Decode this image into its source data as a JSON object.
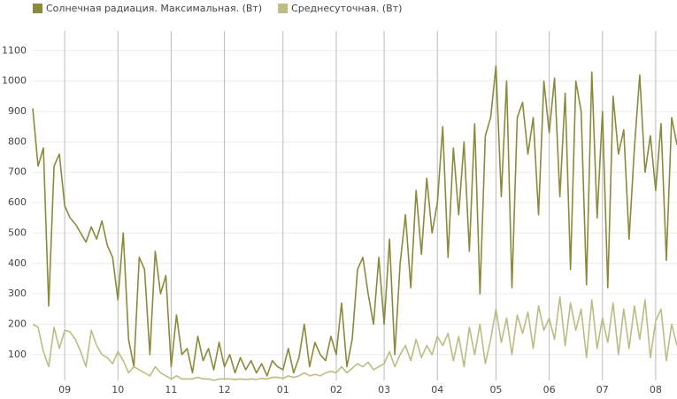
{
  "chart_data": {
    "type": "line",
    "categories": [
      null,
      null,
      null,
      null,
      null,
      null,
      "09",
      null,
      null,
      null,
      null,
      null,
      null,
      null,
      null,
      null,
      "10",
      null,
      null,
      null,
      null,
      null,
      null,
      null,
      null,
      null,
      "11",
      null,
      null,
      null,
      null,
      null,
      null,
      null,
      null,
      null,
      "12",
      null,
      null,
      null,
      null,
      null,
      null,
      null,
      null,
      null,
      null,
      "01",
      null,
      null,
      null,
      null,
      null,
      null,
      null,
      null,
      null,
      "02",
      null,
      null,
      null,
      null,
      null,
      null,
      null,
      null,
      "03",
      null,
      null,
      null,
      null,
      null,
      null,
      null,
      null,
      null,
      "04",
      null,
      null,
      null,
      null,
      null,
      null,
      null,
      null,
      null,
      null,
      "05",
      null,
      null,
      null,
      null,
      null,
      null,
      null,
      null,
      null,
      "06",
      null,
      null,
      null,
      null,
      null,
      null,
      null,
      null,
      null,
      "07",
      null,
      null,
      null,
      null,
      null,
      null,
      null,
      null,
      null,
      "08",
      null,
      null,
      null,
      null
    ],
    "series": [
      {
        "name": "Солнечная радиация. Максимальная. (Вт)",
        "color": "#8b8a3c",
        "values": [
          910,
          720,
          780,
          260,
          720,
          760,
          590,
          550,
          530,
          500,
          470,
          520,
          480,
          540,
          460,
          420,
          280,
          500,
          150,
          60,
          420,
          380,
          100,
          440,
          300,
          360,
          60,
          230,
          100,
          120,
          40,
          160,
          80,
          120,
          50,
          140,
          60,
          100,
          40,
          90,
          50,
          80,
          40,
          70,
          30,
          80,
          60,
          50,
          120,
          40,
          90,
          200,
          60,
          140,
          100,
          80,
          160,
          100,
          270,
          60,
          150,
          380,
          420,
          300,
          200,
          420,
          200,
          480,
          100,
          400,
          560,
          320,
          640,
          430,
          680,
          500,
          600,
          850,
          420,
          780,
          560,
          800,
          440,
          860,
          300,
          820,
          880,
          1050,
          620,
          1000,
          320,
          880,
          930,
          760,
          880,
          560,
          1000,
          830,
          1010,
          620,
          960,
          380,
          1000,
          900,
          330,
          1030,
          550,
          900,
          320,
          950,
          760,
          840,
          480,
          780,
          1020,
          700,
          820,
          640,
          860,
          410,
          880,
          790
        ]
      },
      {
        "name": "Среднесуточная. (Вт)",
        "color": "#bdbc83",
        "values": [
          200,
          190,
          110,
          60,
          190,
          120,
          180,
          175,
          150,
          110,
          60,
          180,
          130,
          100,
          90,
          70,
          110,
          80,
          40,
          60,
          50,
          40,
          30,
          60,
          40,
          30,
          20,
          30,
          20,
          20,
          20,
          25,
          20,
          20,
          15,
          20,
          20,
          20,
          18,
          20,
          18,
          20,
          18,
          22,
          20,
          25,
          25,
          22,
          30,
          25,
          30,
          40,
          30,
          35,
          30,
          40,
          45,
          40,
          60,
          40,
          55,
          70,
          60,
          75,
          50,
          60,
          70,
          110,
          60,
          100,
          130,
          80,
          150,
          90,
          130,
          100,
          160,
          130,
          170,
          80,
          160,
          60,
          190,
          100,
          200,
          70,
          150,
          250,
          140,
          220,
          100,
          230,
          170,
          240,
          120,
          260,
          180,
          220,
          150,
          290,
          130,
          270,
          180,
          250,
          90,
          280,
          120,
          220,
          140,
          270,
          100,
          250,
          120,
          260,
          150,
          280,
          90,
          210,
          250,
          80,
          200,
          130
        ]
      }
    ],
    "ylim": [
      15,
      1165
    ],
    "yticks": [
      100,
      200,
      300,
      400,
      500,
      600,
      700,
      800,
      900,
      1000,
      1100
    ],
    "grid": true
  }
}
